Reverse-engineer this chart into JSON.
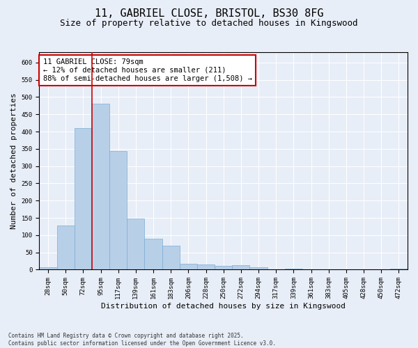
{
  "title_line1": "11, GABRIEL CLOSE, BRISTOL, BS30 8FG",
  "title_line2": "Size of property relative to detached houses in Kingswood",
  "xlabel": "Distribution of detached houses by size in Kingswood",
  "ylabel": "Number of detached properties",
  "bar_labels": [
    "28sqm",
    "50sqm",
    "72sqm",
    "95sqm",
    "117sqm",
    "139sqm",
    "161sqm",
    "183sqm",
    "206sqm",
    "228sqm",
    "250sqm",
    "272sqm",
    "294sqm",
    "317sqm",
    "339sqm",
    "361sqm",
    "383sqm",
    "405sqm",
    "428sqm",
    "450sqm",
    "472sqm"
  ],
  "bar_values": [
    8,
    128,
    410,
    480,
    343,
    148,
    90,
    70,
    18,
    15,
    12,
    14,
    6,
    0,
    3,
    0,
    0,
    0,
    0,
    0,
    2
  ],
  "bar_color": "#b8cfe8",
  "bar_edge_color": "#7aaed4",
  "vline_index": 2.5,
  "vline_color": "#cc0000",
  "annotation_text": "11 GABRIEL CLOSE: 79sqm\n← 12% of detached houses are smaller (211)\n88% of semi-detached houses are larger (1,508) →",
  "annotation_box_color": "#ffffff",
  "annotation_box_edge_color": "#cc0000",
  "ylim": [
    0,
    630
  ],
  "yticks": [
    0,
    50,
    100,
    150,
    200,
    250,
    300,
    350,
    400,
    450,
    500,
    550,
    600
  ],
  "background_color": "#e8eef7",
  "plot_background": "#e8eef7",
  "footer_text": "Contains HM Land Registry data © Crown copyright and database right 2025.\nContains public sector information licensed under the Open Government Licence v3.0.",
  "title_fontsize": 11,
  "subtitle_fontsize": 9,
  "axis_label_fontsize": 8,
  "tick_fontsize": 6.5,
  "annotation_fontsize": 7.5,
  "footer_fontsize": 5.5
}
